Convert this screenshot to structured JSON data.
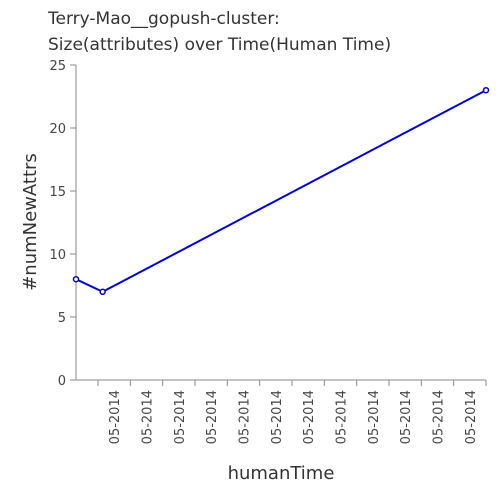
{
  "chart_data": {
    "type": "line",
    "title_line1": "Terry-Mao__gopush-cluster:",
    "title_line2": "Size(attributes) over Time(Human Time)",
    "xlabel": "humanTime",
    "ylabel": "#numNewAttrs",
    "ylim": [
      0,
      25
    ],
    "y_ticks": [
      0,
      5,
      10,
      15,
      20,
      25
    ],
    "x_tick_labels": [
      "05-2014",
      "05-2014",
      "05-2014",
      "05-2014",
      "05-2014",
      "05-2014",
      "05-2014",
      "05-2014",
      "05-2014",
      "05-2014",
      "05-2014",
      "05-2014"
    ],
    "series": [
      {
        "x_frac": [
          0.0,
          0.065,
          1.0
        ],
        "values": [
          8,
          7,
          23
        ]
      }
    ],
    "colors": {
      "line": "#0000dd"
    },
    "grid": false
  }
}
